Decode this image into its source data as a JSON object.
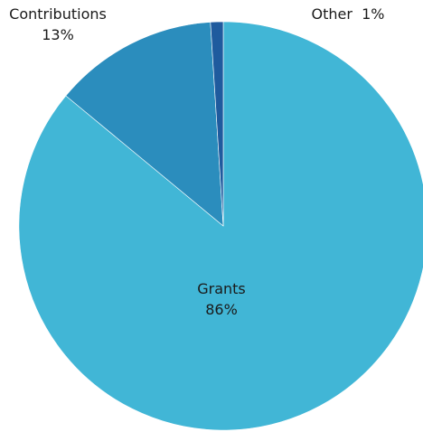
{
  "chart_data": {
    "type": "pie",
    "title": "",
    "slices": [
      {
        "label": "Grants",
        "value": 86,
        "value_label": "86%",
        "color": "#41b6d6"
      },
      {
        "label": "Contributions",
        "value": 13,
        "value_label": "13%",
        "color": "#2b8dbd"
      },
      {
        "label": "Other",
        "value": 1,
        "value_label": "1%",
        "color": "#1f5b9e"
      }
    ],
    "legend": "none",
    "start_angle": "12 o'clock, clockwise"
  }
}
